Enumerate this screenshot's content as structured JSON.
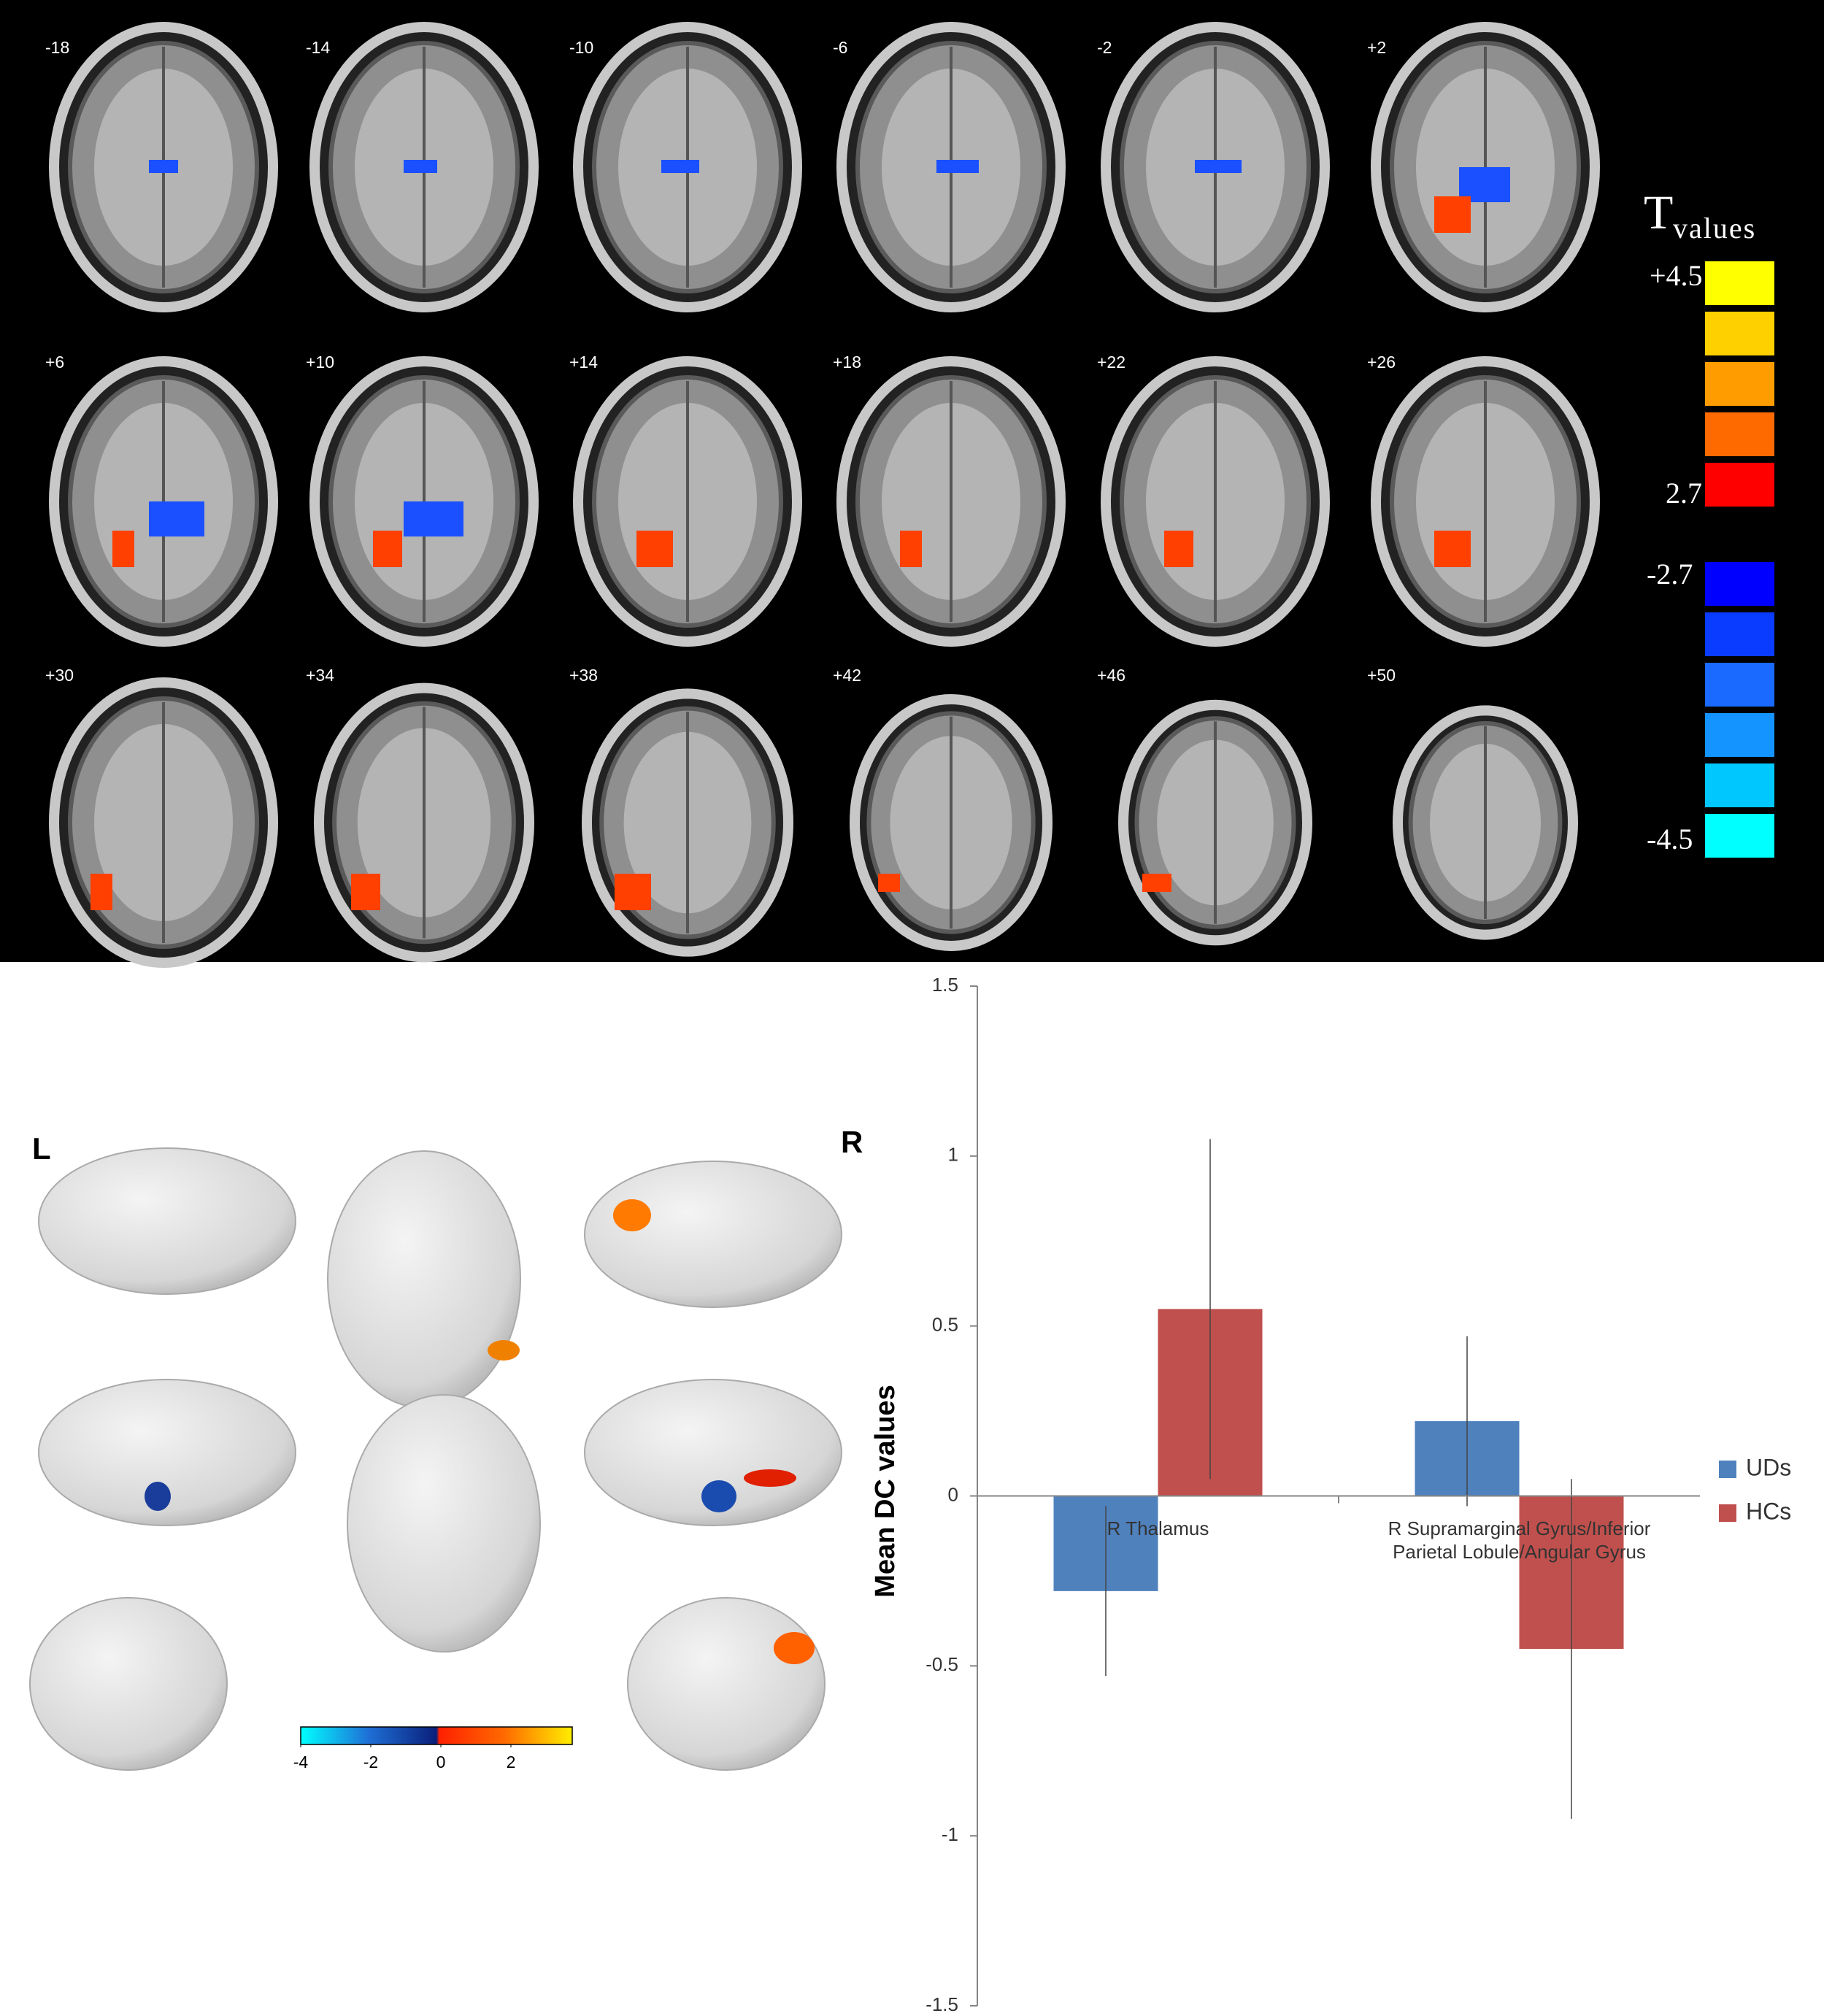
{
  "slices": {
    "labels": [
      "-18",
      "-14",
      "-10",
      "-6",
      "-2",
      "+2",
      "+6",
      "+10",
      "+14",
      "+18",
      "+22",
      "+26",
      "+30",
      "+34",
      "+38",
      "+42",
      "+46",
      "+50"
    ]
  },
  "t_legend": {
    "title": "T",
    "subtitle": "values",
    "labels": [
      "+4.5",
      "2.7",
      "-2.7",
      "-4.5"
    ],
    "positive_colors": [
      "#ffff00",
      "#ffd000",
      "#ff9d00",
      "#ff6a00",
      "#ff0000"
    ],
    "negative_colors": [
      "#0000ff",
      "#0a3cff",
      "#1a6aff",
      "#1494ff",
      "#00c8ff",
      "#00ffff"
    ]
  },
  "surface": {
    "left_label": "L",
    "right_label": "R",
    "colorbar": {
      "lim": [
        -4,
        3.75
      ],
      "ticks": [
        -4,
        -2,
        0,
        2
      ]
    }
  },
  "chart_data": {
    "type": "bar",
    "ylabel": "Mean DC values",
    "categories": [
      "R Thalamus",
      "R Supramarginal Gyrus/Inferior Parietal Lobule/Angular Gyrus"
    ],
    "series": [
      {
        "name": "UDs",
        "color": "#4f81bd",
        "values": [
          -0.28,
          0.22
        ],
        "errors": [
          0.25,
          0.25
        ]
      },
      {
        "name": "HCs",
        "color": "#c0504d",
        "values": [
          0.55,
          -0.45
        ],
        "errors": [
          0.5,
          0.5
        ]
      }
    ],
    "ylim": [
      -1.5,
      1.5
    ],
    "yticks": [
      -1.5,
      -1,
      -0.5,
      0,
      0.5,
      1,
      1.5
    ],
    "legend": "right"
  }
}
